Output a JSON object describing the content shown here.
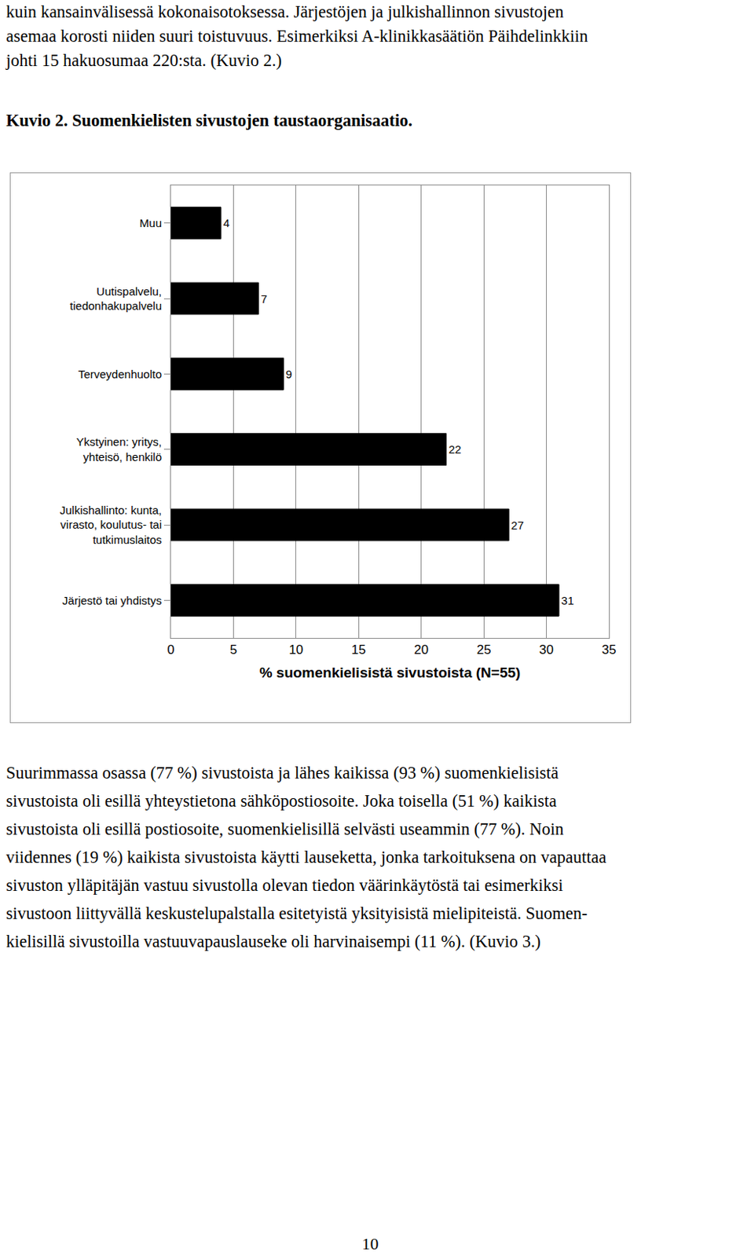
{
  "text_before": {
    "lines": [
      "kuin kansainvälisessä kokonaisotoksessa. Järjestöjen ja julkishallinnon sivustojen",
      "asemaa korosti niiden suuri toistuvuus. Esimerkiksi A-klinikkasäätiön Päihdelinkkiin",
      "johti 15 hakuosumaa 220:sta. (Kuvio 2.)"
    ]
  },
  "caption": "Kuvio 2. Suomenkielisten sivustojen taustaorganisaatio.",
  "chart_data": {
    "type": "bar",
    "orientation": "horizontal",
    "categories": [
      "Muu",
      "Uutispalvelu,\ntiedonhakupalvelu",
      "Terveydenhuolto",
      "Ykstyinen: yritys,\nyhteisö, henkilö",
      "Julkishallinto: kunta,\nvirasto, koulutus- tai\ntutkimuslaitos",
      "Järjestö tai yhdistys"
    ],
    "values": [
      4,
      7,
      9,
      22,
      27,
      31
    ],
    "color": "#000000",
    "x_label": "% suomenkielisistä sivustoista (N=55)",
    "xlim": [
      0,
      35
    ],
    "xticks": [
      0,
      5,
      10,
      15,
      20,
      25,
      30,
      35
    ],
    "grid": true,
    "data_labels": true
  },
  "text_after": {
    "lines": [
      "Suurimmassa osassa (77 %) sivustoista ja lähes kaikissa (93 %) suomenkielisistä",
      "sivustoista oli esillä yhteystietona sähköpostiosoite. Joka toisella (51 %) kaikista",
      "sivustoista oli esillä postiosoite, suomenkielisillä selvästi useammin (77 %). Noin",
      "viidennes (19 %) kaikista sivustoista käytti lauseketta, jonka tarkoituksena on vapauttaa",
      "sivuston ylläpitäjän vastuu sivustolla olevan tiedon väärinkäytöstä tai esimerkiksi",
      "sivustoon liittyvällä keskustelupalstalla esitetyistä yksityisistä mielipiteistä. Suomen-",
      "kielisillä sivustoilla vastuuvapauslauseke oli harvinaisempi (11 %). (Kuvio 3.)"
    ]
  },
  "page_number": "10"
}
